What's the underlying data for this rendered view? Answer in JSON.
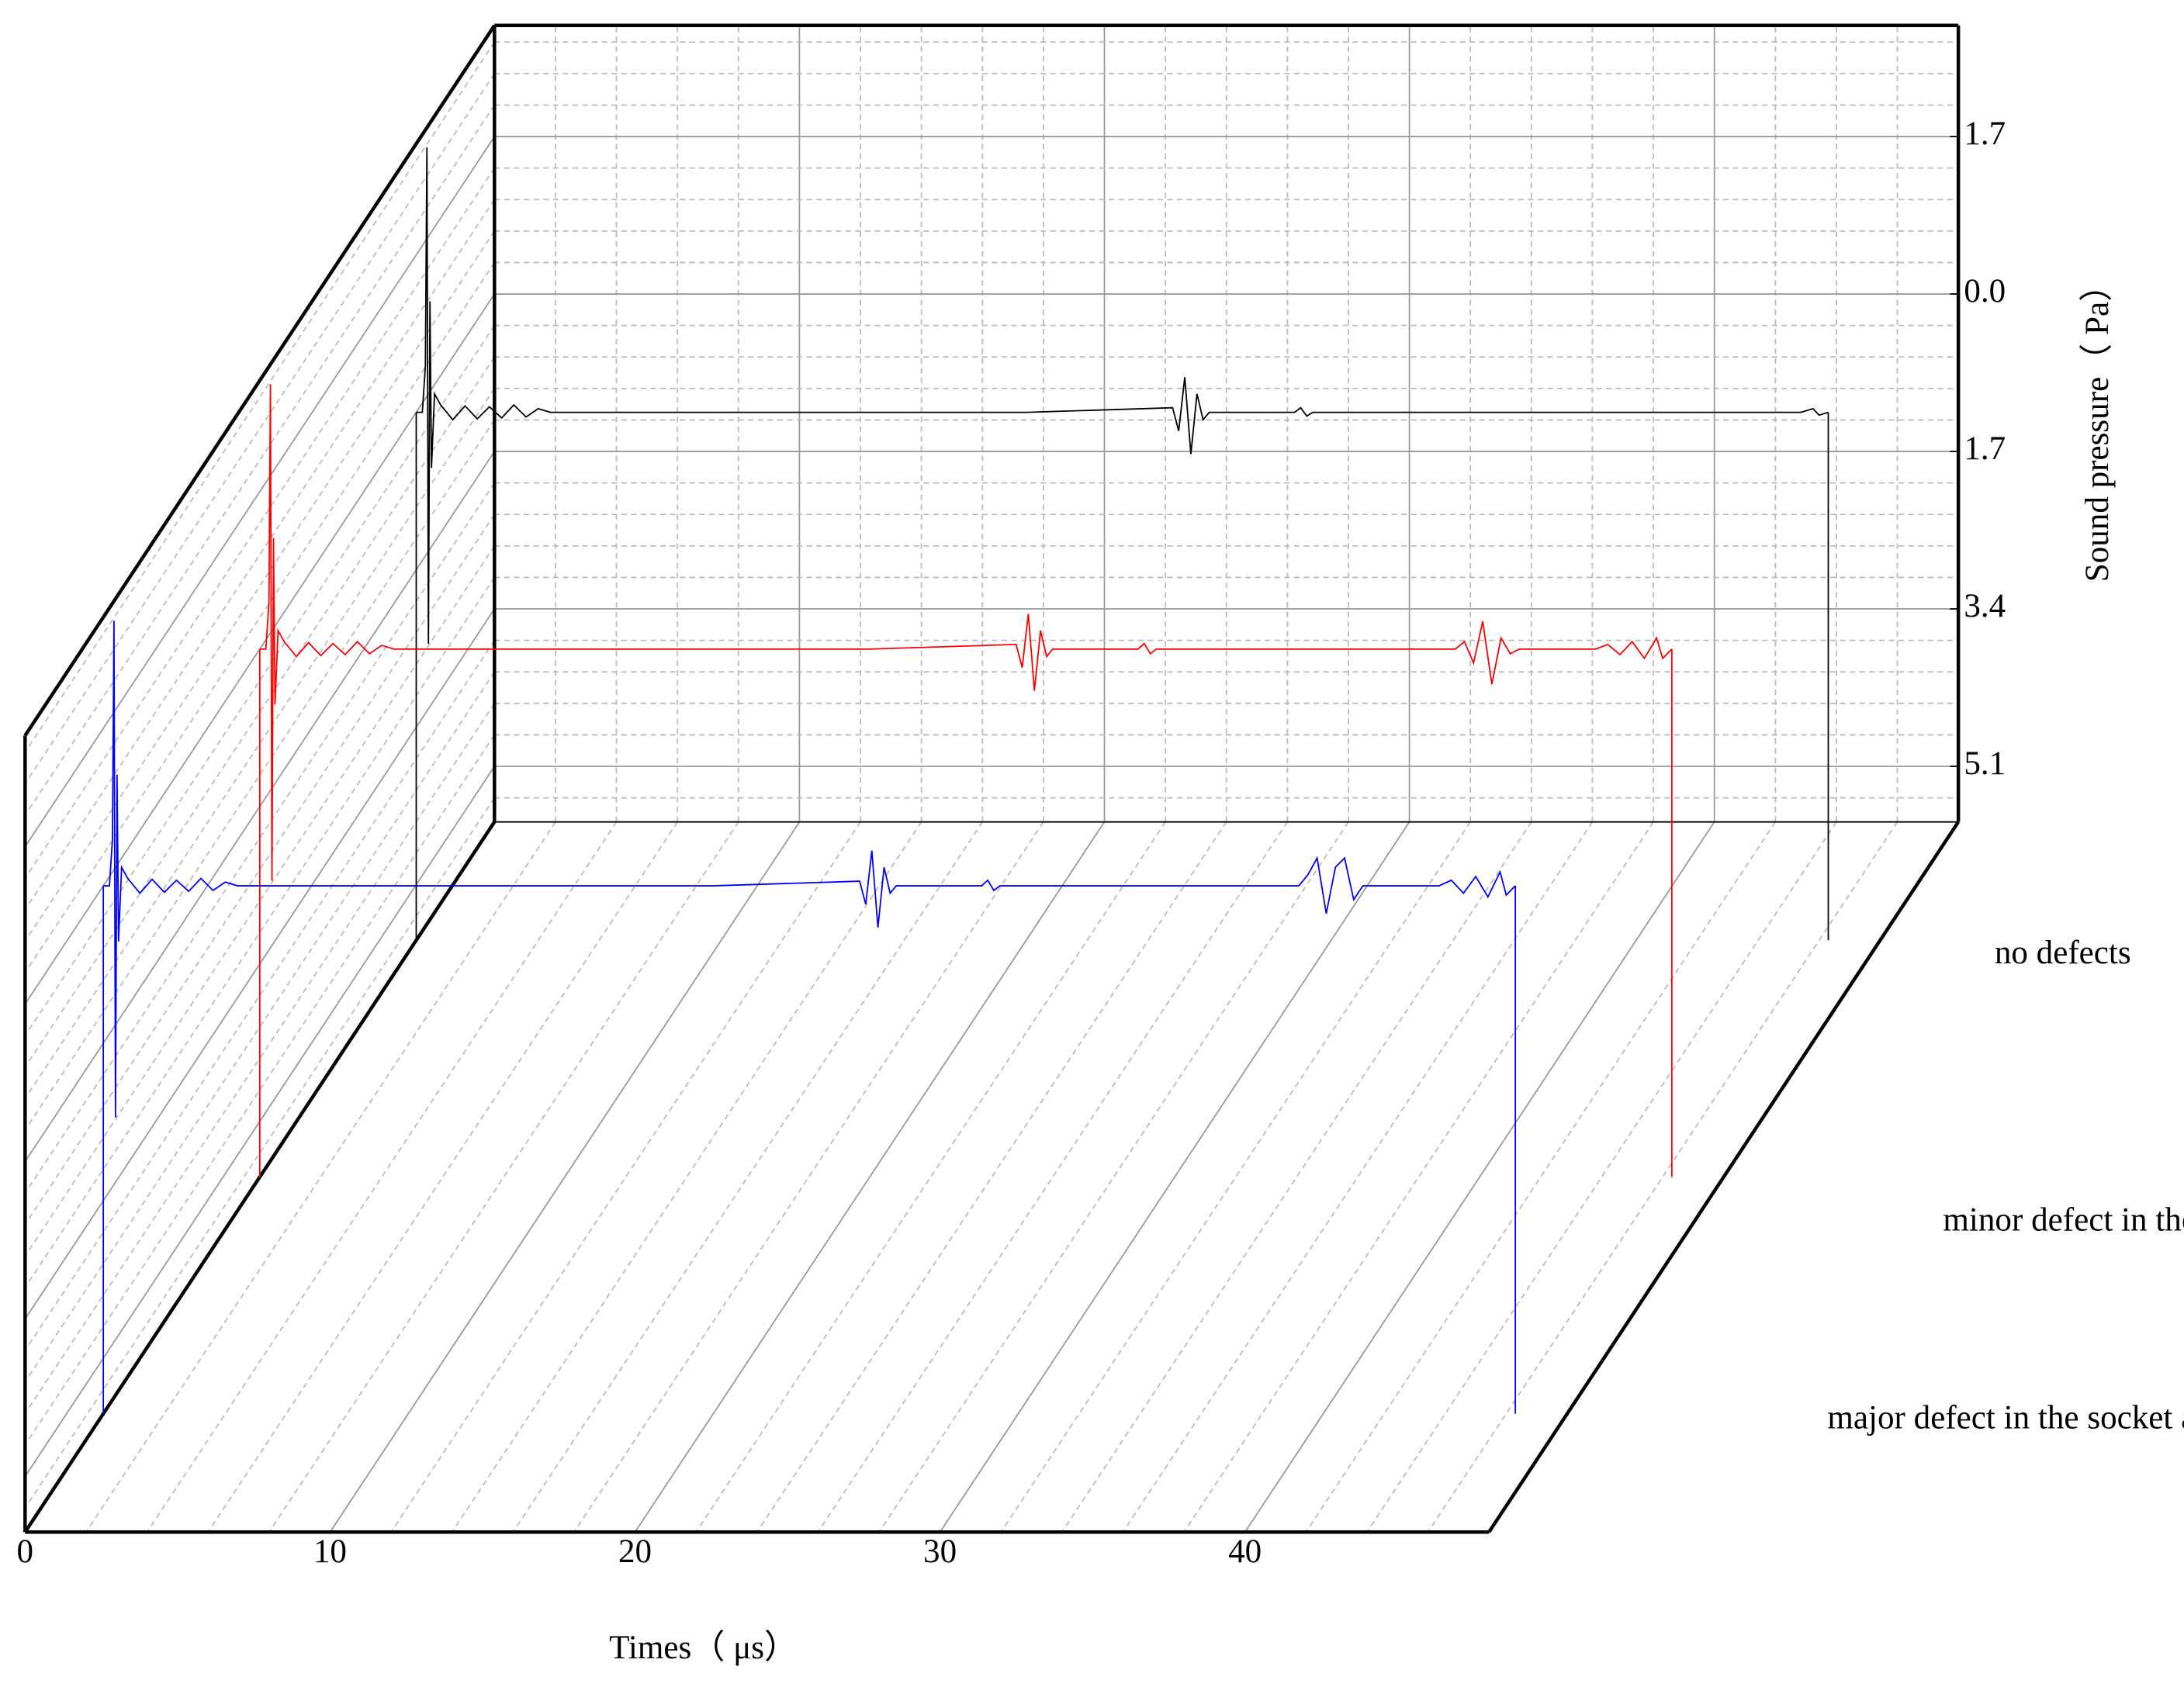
{
  "chart_data": {
    "type": "waterfall",
    "x_label": "Times（ μs）",
    "y_label": "Sound pressure（ Pa）",
    "x": [
      0,
      0.2,
      0.3,
      0.35,
      0.4,
      0.45,
      0.5,
      0.6,
      0.8,
      1.2,
      1.6,
      2.0,
      2.4,
      2.8,
      3.2,
      3.6,
      4.0,
      4.4,
      10,
      20,
      24.8,
      25.0,
      25.2,
      25.4,
      25.6,
      25.8,
      26.0,
      28.8,
      29.0,
      29.2,
      29.4,
      35,
      39.2,
      39.5,
      39.8,
      40.1,
      40.4,
      40.7,
      41.0,
      41.3,
      43.8,
      44.2,
      44.6,
      45.0,
      45.4,
      45.8,
      46.0,
      46.3
    ],
    "series": [
      {
        "name": "no defects",
        "color": "#000000",
        "values": [
          0,
          0,
          0.5,
          2.86,
          -2.5,
          1.2,
          -0.6,
          0.2,
          0.08,
          -0.08,
          0.07,
          -0.07,
          0.06,
          -0.06,
          0.08,
          -0.05,
          0.04,
          0,
          0,
          0,
          0.05,
          -0.2,
          0.38,
          -0.45,
          0.2,
          -0.08,
          0,
          0,
          0.05,
          -0.04,
          0,
          0,
          0,
          0,
          0,
          0,
          0,
          0,
          0,
          0,
          0,
          0,
          0,
          0,
          0,
          0.04,
          -0.03,
          0
        ]
      },
      {
        "name": "minor defect in the socket area",
        "color": "#ff0000",
        "values": [
          0,
          0,
          0.5,
          2.86,
          -2.5,
          1.2,
          -0.6,
          0.2,
          0.08,
          -0.08,
          0.07,
          -0.07,
          0.06,
          -0.06,
          0.08,
          -0.05,
          0.04,
          0,
          0,
          0,
          0.05,
          -0.2,
          0.38,
          -0.45,
          0.2,
          -0.08,
          0,
          0,
          0.06,
          -0.05,
          0,
          0,
          0,
          0.08,
          -0.15,
          0.3,
          -0.38,
          0.12,
          -0.05,
          0,
          0,
          0.05,
          -0.06,
          0.08,
          -0.1,
          0.12,
          -0.1,
          0
        ]
      },
      {
        "name": "major defect in the socket area",
        "color": "#0000ff",
        "values": [
          0,
          0,
          0.5,
          2.86,
          -2.5,
          1.2,
          -0.6,
          0.2,
          0.08,
          -0.08,
          0.07,
          -0.07,
          0.06,
          -0.06,
          0.08,
          -0.05,
          0.04,
          0,
          0,
          0,
          0.05,
          -0.2,
          0.38,
          -0.45,
          0.2,
          -0.08,
          0,
          0,
          0.06,
          -0.05,
          0,
          0,
          0,
          0.12,
          0.3,
          -0.3,
          0.2,
          0.3,
          -0.15,
          0,
          0,
          0.06,
          -0.08,
          0.1,
          -0.12,
          0.15,
          -0.1,
          0
        ]
      }
    ],
    "xlim": [
      0,
      48
    ],
    "xticks": [
      0,
      10,
      20,
      30,
      40
    ],
    "ylim": [
      -5.7,
      2.9
    ],
    "yticks": [
      1.7,
      {
        "value": 0,
        "label": "0.0"
      },
      {
        "value": -1.7,
        "label": "1.7"
      },
      {
        "value": -3.4,
        "label": "3.4"
      },
      {
        "value": -5.1,
        "label": "5.1"
      }
    ],
    "grid": true
  }
}
